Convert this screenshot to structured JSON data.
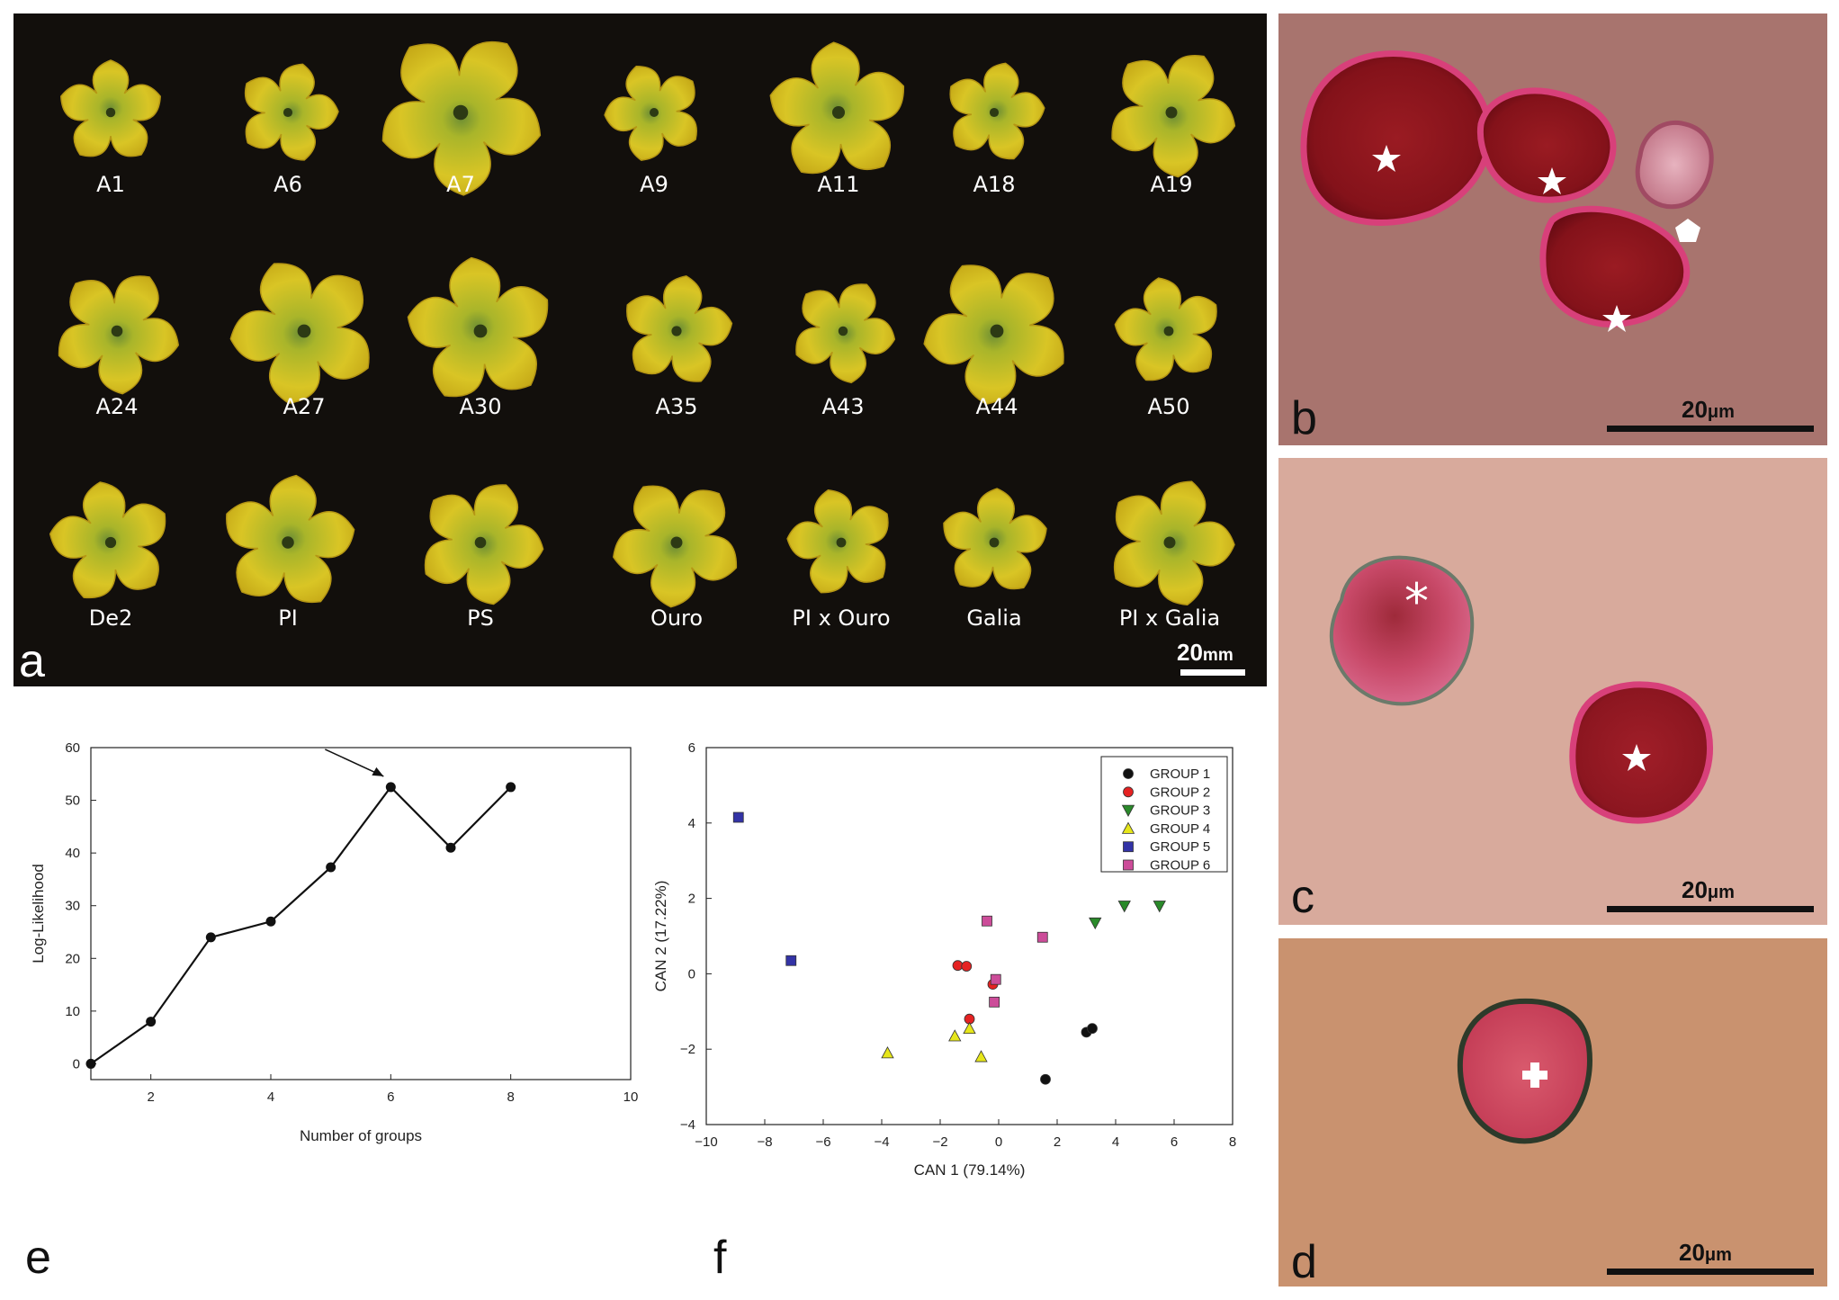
{
  "panel_a": {
    "letter": "a",
    "scale_label": "20",
    "scale_unit": "mm",
    "rows": [
      [
        "A1",
        "A6",
        "A7",
        "A9",
        "A11",
        "A18",
        "A19"
      ],
      [
        "A24",
        "A27",
        "A30",
        "A35",
        "A43",
        "A44",
        "A50"
      ],
      [
        "De2",
        "PI",
        "PS",
        "Ouro",
        "PI x Ouro",
        "Galia",
        "PI x Galia"
      ]
    ]
  },
  "panel_b": {
    "letter": "b",
    "scale_label": "20",
    "scale_unit": "μm"
  },
  "panel_c": {
    "letter": "c",
    "scale_label": "20",
    "scale_unit": "μm"
  },
  "panel_d": {
    "letter": "d",
    "scale_label": "20",
    "scale_unit": "μm"
  },
  "panel_e": {
    "letter": "e"
  },
  "panel_f": {
    "letter": "f"
  },
  "chart_data": [
    {
      "type": "line",
      "xlabel": "Number of groups",
      "ylabel": "Log-Likelihood",
      "xlim": [
        1,
        10
      ],
      "ylim": [
        -3,
        60
      ],
      "xticks": [
        2,
        4,
        6,
        8,
        10
      ],
      "yticks": [
        0,
        10,
        20,
        30,
        40,
        50,
        60
      ],
      "x": [
        1,
        2,
        3,
        4,
        5,
        6,
        7,
        8
      ],
      "y": [
        0,
        8,
        24,
        27,
        37.3,
        52.5,
        41,
        52.5
      ],
      "annotation": {
        "type": "arrow",
        "target_x": 6,
        "target_y": 52.5
      }
    },
    {
      "type": "scatter",
      "xlabel": "CAN 1 (79.14%)",
      "ylabel": "CAN 2 (17.22%)",
      "xlim": [
        -10,
        8
      ],
      "ylim": [
        -4,
        6
      ],
      "xticks": [
        -10,
        -8,
        -6,
        -4,
        -2,
        0,
        2,
        4,
        6,
        8
      ],
      "yticks": [
        -4,
        -2,
        0,
        2,
        4,
        6
      ],
      "legend_position": "top-right",
      "series": [
        {
          "name": "GROUP 1",
          "marker": "circle",
          "color": "#111111",
          "points": [
            [
              1.6,
              -2.8
            ],
            [
              3.0,
              -1.55
            ],
            [
              3.2,
              -1.45
            ]
          ]
        },
        {
          "name": "GROUP 2",
          "marker": "circle",
          "color": "#e52222",
          "points": [
            [
              -1.4,
              0.22
            ],
            [
              -1.1,
              0.2
            ],
            [
              -0.2,
              -0.28
            ],
            [
              -1.0,
              -1.2
            ]
          ]
        },
        {
          "name": "GROUP 3",
          "marker": "triangle-down",
          "color": "#2a8a2a",
          "points": [
            [
              3.3,
              1.35
            ],
            [
              4.3,
              1.8
            ],
            [
              5.5,
              1.8
            ]
          ]
        },
        {
          "name": "GROUP 4",
          "marker": "triangle-up",
          "color": "#e6e61a",
          "points": [
            [
              -3.8,
              -2.1
            ],
            [
              -1.5,
              -1.65
            ],
            [
              -1.0,
              -1.45
            ],
            [
              -0.6,
              -2.2
            ]
          ]
        },
        {
          "name": "GROUP 5",
          "marker": "square",
          "color": "#3333a6",
          "points": [
            [
              -8.9,
              4.15
            ],
            [
              -7.1,
              0.35
            ]
          ]
        },
        {
          "name": "GROUP 6",
          "marker": "square",
          "color": "#cc4c99",
          "points": [
            [
              -0.4,
              1.4
            ],
            [
              1.5,
              0.97
            ],
            [
              -0.1,
              -0.15
            ],
            [
              -0.15,
              -0.75
            ]
          ]
        }
      ]
    }
  ]
}
